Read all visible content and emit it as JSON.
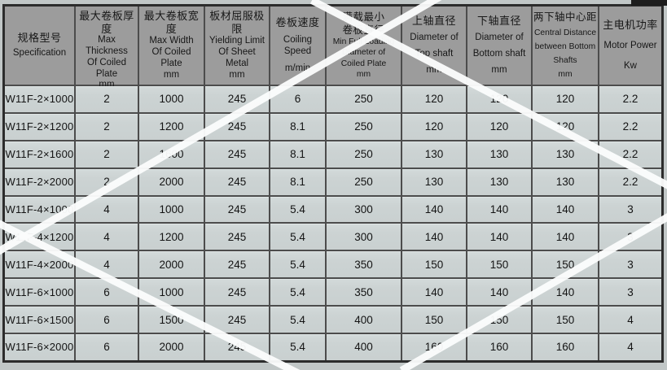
{
  "page": {
    "background_color": "#c1c7c7",
    "stripe_color": "#fbfcfc",
    "header_bg_color": "#9c9c9c",
    "row_bg_color": "#ccd3d3",
    "grid_line_color": "#4c4c4c"
  },
  "table": {
    "columns": [
      {
        "id": "specification",
        "zh": [
          "规格型号"
        ],
        "en": [
          "Specification"
        ],
        "unit": ""
      },
      {
        "id": "max-thickness",
        "zh": [
          "最大卷板厚度"
        ],
        "en": [
          "Max Thickness",
          "Of Coiled Plate"
        ],
        "unit": "mm"
      },
      {
        "id": "max-width",
        "zh": [
          "最大卷板宽度"
        ],
        "en": [
          "Max Width",
          "Of Coiled Plate"
        ],
        "unit": "mm"
      },
      {
        "id": "yielding-limit",
        "zh": [
          "板材屈服极限"
        ],
        "en": [
          "Yielding Limit",
          "Of Sheet Metal"
        ],
        "unit": "mm"
      },
      {
        "id": "coiling-speed",
        "zh": [
          "卷板速度"
        ],
        "en": [
          "Coiling Speed"
        ],
        "unit": "m/min"
      },
      {
        "id": "min-full-loading-diameter",
        "zh": [
          "满载最小",
          "卷板直径"
        ],
        "en": [
          "Min Full Loading",
          "Diameter of",
          "Coiled Plate"
        ],
        "unit": "mm"
      },
      {
        "id": "top-shaft-diameter",
        "zh": [
          "上轴直径"
        ],
        "en": [
          "Diameter of",
          "Top shaft"
        ],
        "unit": "mm"
      },
      {
        "id": "bottom-shaft-diameter",
        "zh": [
          "下轴直径"
        ],
        "en": [
          "Diameter of",
          "Bottom shaft"
        ],
        "unit": "mm"
      },
      {
        "id": "central-distance",
        "zh": [
          "两下轴中心距"
        ],
        "en": [
          "Central  Distance",
          "between Bottom",
          "Shafts"
        ],
        "unit": "mm"
      },
      {
        "id": "motor-power",
        "zh": [
          "主电机功率"
        ],
        "en": [
          "Motor Power"
        ],
        "unit": "Kw"
      }
    ],
    "rows": [
      [
        "W11F-2×1000",
        "2",
        "1000",
        "245",
        "6",
        "250",
        "120",
        "120",
        "120",
        "2.2"
      ],
      [
        "W11F-2×1200",
        "2",
        "1200",
        "245",
        "8.1",
        "250",
        "120",
        "120",
        "120",
        "2.2"
      ],
      [
        "W11F-2×1600",
        "2",
        "1600",
        "245",
        "8.1",
        "250",
        "130",
        "130",
        "130",
        "2.2"
      ],
      [
        "W11F-2×2000",
        "2",
        "2000",
        "245",
        "8.1",
        "250",
        "130",
        "130",
        "130",
        "2.2"
      ],
      [
        "W11F-4×1000",
        "4",
        "1000",
        "245",
        "5.4",
        "300",
        "140",
        "140",
        "140",
        "3"
      ],
      [
        "W11F-4×1200",
        "4",
        "1200",
        "245",
        "5.4",
        "300",
        "140",
        "140",
        "140",
        "3"
      ],
      [
        "W11F-4×2000",
        "4",
        "2000",
        "245",
        "5.4",
        "350",
        "150",
        "150",
        "150",
        "3"
      ],
      [
        "W11F-6×1000",
        "6",
        "1000",
        "245",
        "5.4",
        "350",
        "140",
        "140",
        "140",
        "3"
      ],
      [
        "W11F-6×1500",
        "6",
        "1500",
        "245",
        "5.4",
        "400",
        "150",
        "150",
        "150",
        "4"
      ],
      [
        "W11F-6×2000",
        "6",
        "2000",
        "245",
        "5.4",
        "400",
        "160",
        "160",
        "160",
        "4"
      ]
    ]
  }
}
